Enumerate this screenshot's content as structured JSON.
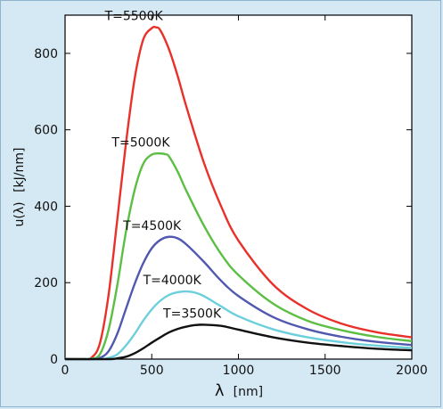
{
  "chart_data": {
    "type": "line",
    "title": "",
    "xlabel": {
      "symbol": "λ",
      "unit": "[nm]"
    },
    "ylabel": {
      "symbol": "u(λ)",
      "unit": "[kJ/nm]"
    },
    "xlim": [
      0,
      2000
    ],
    "ylim": [
      0,
      900
    ],
    "xticks": [
      0,
      500,
      1000,
      1500,
      2000
    ],
    "yticks": [
      0,
      200,
      400,
      600,
      800
    ],
    "grid": false,
    "legend": "none",
    "series": [
      {
        "label": "T=5500K",
        "color": "#e8312a",
        "x": [
          0,
          100,
          150,
          200,
          250,
          300,
          350,
          400,
          450,
          500,
          525,
          550,
          600,
          650,
          700,
          800,
          900,
          1000,
          1200,
          1400,
          1600,
          1800,
          2000
        ],
        "y": [
          0,
          0,
          3,
          40,
          165,
          360,
          560,
          730,
          835,
          866,
          868,
          860,
          810,
          740,
          660,
          515,
          400,
          310,
          195,
          130,
          92,
          70,
          57
        ]
      },
      {
        "label": "T=5000K",
        "color": "#5cbf44",
        "x": [
          0,
          100,
          150,
          200,
          250,
          300,
          350,
          400,
          450,
          500,
          550,
          580,
          600,
          650,
          700,
          800,
          900,
          1000,
          1200,
          1400,
          1600,
          1800,
          2000
        ],
        "y": [
          0,
          0,
          1,
          12,
          75,
          190,
          330,
          440,
          510,
          535,
          538,
          536,
          530,
          490,
          440,
          350,
          275,
          220,
          145,
          100,
          75,
          58,
          47
        ]
      },
      {
        "label": "T=4500K",
        "color": "#5058b0",
        "x": [
          0,
          150,
          200,
          250,
          300,
          350,
          400,
          450,
          500,
          550,
          600,
          650,
          700,
          800,
          900,
          1000,
          1200,
          1400,
          1600,
          1800,
          2000
        ],
        "y": [
          0,
          0,
          3,
          20,
          65,
          130,
          195,
          250,
          290,
          312,
          320,
          316,
          300,
          255,
          205,
          165,
          110,
          78,
          58,
          45,
          37
        ]
      },
      {
        "label": "T=4000K",
        "color": "#6ccfdc",
        "x": [
          0,
          200,
          250,
          300,
          350,
          400,
          450,
          500,
          550,
          600,
          650,
          700,
          750,
          800,
          900,
          1000,
          1200,
          1400,
          1600,
          1800,
          2000
        ],
        "y": [
          0,
          0,
          3,
          12,
          35,
          65,
          100,
          130,
          153,
          168,
          175,
          177,
          174,
          165,
          138,
          112,
          78,
          57,
          44,
          35,
          29
        ]
      },
      {
        "label": "T=3500K",
        "color": "#111111",
        "x": [
          0,
          250,
          300,
          350,
          400,
          450,
          500,
          550,
          600,
          650,
          700,
          750,
          800,
          900,
          1000,
          1200,
          1400,
          1600,
          1800,
          2000
        ],
        "y": [
          0,
          0,
          2,
          6,
          15,
          28,
          43,
          57,
          70,
          79,
          85,
          89,
          90,
          87,
          77,
          57,
          43,
          34,
          27,
          23
        ]
      }
    ]
  }
}
